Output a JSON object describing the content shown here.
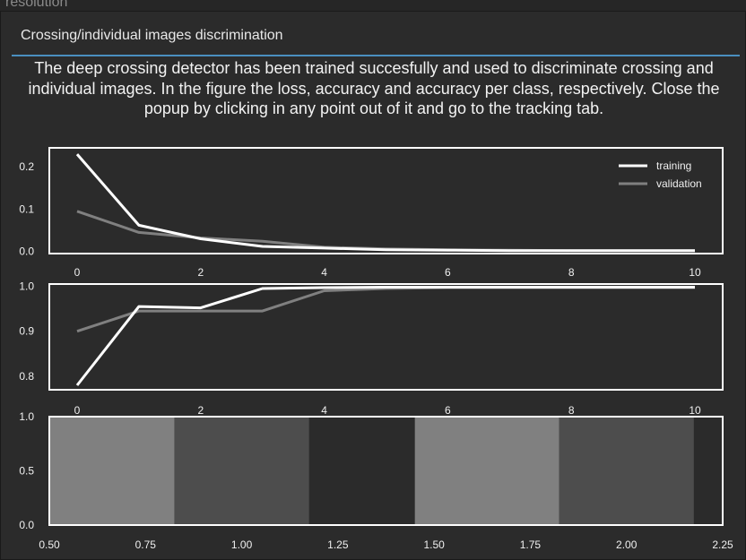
{
  "background": {
    "window_fragment_text": "resolution"
  },
  "popup": {
    "title": "Crossing/individual images discrimination",
    "message": "The deep crossing detector has been trained succesfully and used to discriminate crossing and individual images. In the figure the loss, accuracy and accuracy per class, respectively. Close the popup by clicking in any point out of it and go to the tracking tab."
  },
  "colors": {
    "popup_bg": "#2b2b2b",
    "accent_line": "#4a8fc0",
    "training": "#ffffff",
    "validation": "#808080",
    "bar_light": "#808080",
    "bar_dark": "#4d4d4d"
  },
  "chart_data": [
    {
      "type": "line",
      "x": [
        0,
        1,
        2,
        3,
        4,
        5,
        6,
        7,
        8,
        9,
        10
      ],
      "series": [
        {
          "name": "training",
          "values": [
            0.23,
            0.062,
            0.03,
            0.012,
            0.008,
            0.004,
            0.003,
            0.002,
            0.002,
            0.002,
            0.002
          ]
        },
        {
          "name": "validation",
          "values": [
            0.095,
            0.045,
            0.032,
            0.024,
            0.01,
            0.006,
            0.004,
            0.003,
            0.002,
            0.002,
            0.002
          ]
        }
      ],
      "xlim": [
        -0.45,
        10.45
      ],
      "ylim": [
        -0.005,
        0.245
      ],
      "xticks": [
        "0",
        "2",
        "4",
        "6",
        "8",
        "10"
      ],
      "xtick_values": [
        0,
        2,
        4,
        6,
        8,
        10
      ],
      "yticks": [
        "0.0",
        "0.1",
        "0.2"
      ],
      "ytick_values": [
        0,
        0.1,
        0.2
      ],
      "legend": "top-right",
      "grid": false
    },
    {
      "type": "line",
      "x": [
        0,
        1,
        2,
        3,
        4,
        5,
        6,
        7,
        8,
        9,
        10
      ],
      "series": [
        {
          "values": [
            0.78,
            0.955,
            0.952,
            0.995,
            0.997,
            0.998,
            0.998,
            0.998,
            0.998,
            0.998,
            0.998
          ]
        },
        {
          "values": [
            0.9,
            0.945,
            0.945,
            0.945,
            0.99,
            0.995,
            0.997,
            0.997,
            0.997,
            0.997,
            0.997
          ]
        }
      ],
      "xlim": [
        -0.45,
        10.45
      ],
      "ylim": [
        0.77,
        1.005
      ],
      "xticks": [
        "0",
        "2",
        "4",
        "6",
        "8",
        "10"
      ],
      "xtick_values": [
        0,
        2,
        4,
        6,
        8,
        10
      ],
      "yticks": [
        "0.8",
        "0.9",
        "1.0"
      ],
      "ytick_values": [
        0.8,
        0.9,
        1.0
      ],
      "grid": false
    },
    {
      "type": "bar",
      "bars": [
        {
          "x0": 0.5,
          "x1": 0.825,
          "value": 1.0,
          "color": "#808080"
        },
        {
          "x0": 0.825,
          "x1": 1.175,
          "value": 1.0,
          "color": "#4d4d4d"
        },
        {
          "x0": 1.45,
          "x1": 1.825,
          "value": 1.0,
          "color": "#808080"
        },
        {
          "x0": 1.825,
          "x1": 2.175,
          "value": 1.0,
          "color": "#4d4d4d"
        }
      ],
      "xlim": [
        0.5,
        2.25
      ],
      "ylim": [
        0,
        1.0
      ],
      "xticks": [
        "0.50",
        "0.75",
        "1.00",
        "1.25",
        "1.50",
        "1.75",
        "2.00",
        "2.25"
      ],
      "xtick_values": [
        0.5,
        0.75,
        1.0,
        1.25,
        1.5,
        1.75,
        2.0,
        2.25
      ],
      "yticks": [
        "0.0",
        "0.5",
        "1.0"
      ],
      "ytick_values": [
        0,
        0.5,
        1.0
      ],
      "grid": false
    }
  ]
}
